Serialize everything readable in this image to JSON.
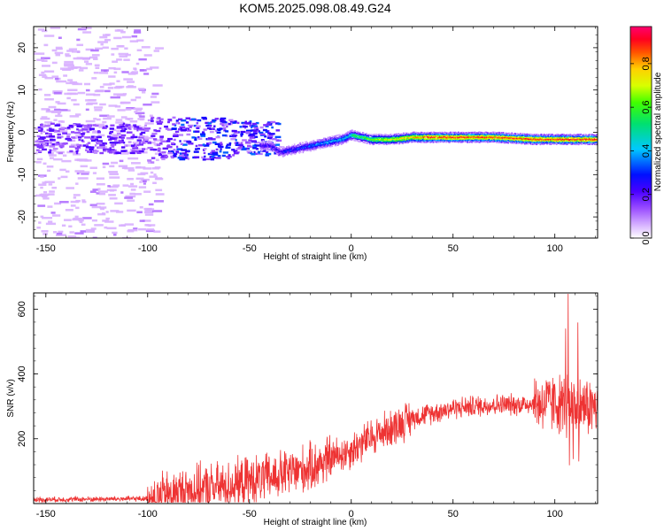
{
  "title": "KOM5.2025.098.08.49.G24",
  "chart_data": [
    {
      "type": "heatmap",
      "xlabel": "Height of straight line (km)",
      "ylabel": "Frequency (Hz)",
      "xlim": [
        -156,
        121
      ],
      "ylim": [
        -25,
        25
      ],
      "xticks": [
        -150,
        -100,
        -50,
        0,
        50,
        100
      ],
      "yticks": [
        -20,
        -10,
        0,
        10,
        20
      ],
      "colorbar": {
        "label": "Normalized spectral amplitude",
        "range": [
          0,
          0.97
        ],
        "ticks": [
          0.0,
          0.2,
          0.4,
          0.6,
          0.8
        ],
        "colormap": "white-violet-purple-blue-cyan-green-yellow-orange-red-magenta"
      },
      "ridge": {
        "x": [
          -40,
          -35,
          -30,
          -20,
          -10,
          -5,
          0,
          5,
          10,
          20,
          30,
          50,
          70,
          90,
          100,
          110,
          121
        ],
        "y": [
          -3,
          -4.5,
          -4,
          -3,
          -2,
          -1.5,
          -0.5,
          -1,
          -1.5,
          -1.5,
          -1,
          -1,
          -1,
          -1.5,
          -1.5,
          -1.5,
          -1.5
        ]
      }
    },
    {
      "type": "line",
      "xlabel": "Height of straight line (km)",
      "ylabel": "SNR (v/v)",
      "xlim": [
        -156,
        121
      ],
      "ylim": [
        0,
        650
      ],
      "xticks": [
        -150,
        -100,
        -50,
        0,
        50,
        100
      ],
      "yticks": [
        200,
        400,
        600
      ],
      "color": "#ee3333",
      "envelope": {
        "x": [
          -156,
          -100,
          -90,
          -80,
          -60,
          -50,
          -40,
          -30,
          -20,
          -10,
          0,
          10,
          20,
          30,
          40,
          50,
          60,
          70,
          80,
          90,
          100,
          105,
          110,
          115,
          121
        ],
        "y": [
          12,
          15,
          25,
          40,
          55,
          70,
          80,
          95,
          110,
          140,
          165,
          205,
          235,
          265,
          280,
          295,
          300,
          305,
          305,
          310,
          310,
          305,
          300,
          300,
          295
        ]
      }
    }
  ]
}
